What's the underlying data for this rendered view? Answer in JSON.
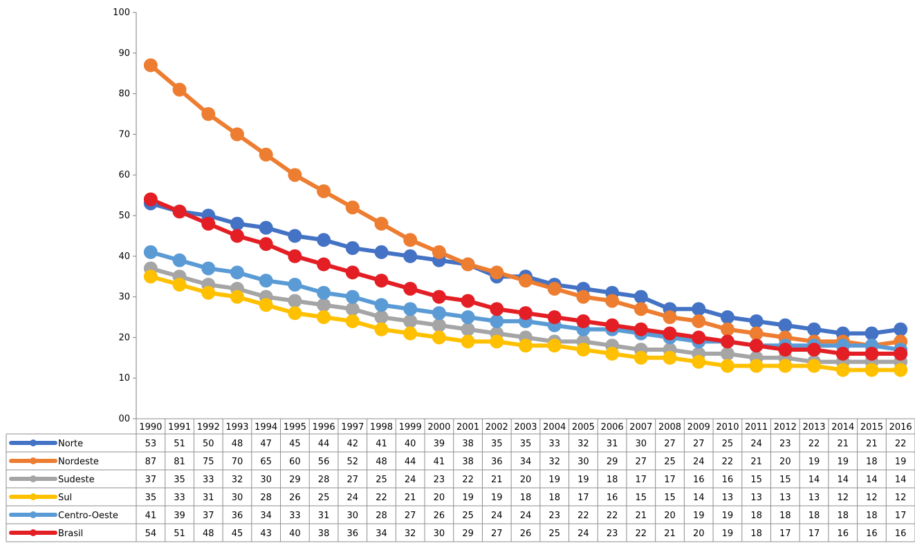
{
  "chart_data": {
    "type": "line",
    "title": "",
    "xlabel": "",
    "ylabel": "",
    "ylim": [
      0,
      100
    ],
    "yticks": [
      "00",
      "10",
      "20",
      "30",
      "40",
      "50",
      "60",
      "70",
      "80",
      "90",
      "100"
    ],
    "grid": false,
    "legend": "data-table-left",
    "categories": [
      "1990",
      "1991",
      "1992",
      "1993",
      "1994",
      "1995",
      "1996",
      "1997",
      "1998",
      "1999",
      "2000",
      "2001",
      "2002",
      "2003",
      "2004",
      "2005",
      "2006",
      "2007",
      "2008",
      "2009",
      "2010",
      "2011",
      "2012",
      "2013",
      "2014",
      "2015",
      "2016"
    ],
    "series": [
      {
        "name": "Norte",
        "color": "#4472c4",
        "values": [
          53,
          51,
          50,
          48,
          47,
          45,
          44,
          42,
          41,
          40,
          39,
          38,
          35,
          35,
          33,
          32,
          31,
          30,
          27,
          27,
          25,
          24,
          23,
          22,
          21,
          21,
          22
        ]
      },
      {
        "name": "Nordeste",
        "color": "#ed7d31",
        "values": [
          87,
          81,
          75,
          70,
          65,
          60,
          56,
          52,
          48,
          44,
          41,
          38,
          36,
          34,
          32,
          30,
          29,
          27,
          25,
          24,
          22,
          21,
          20,
          19,
          19,
          18,
          19
        ]
      },
      {
        "name": "Sudeste",
        "color": "#a5a5a5",
        "values": [
          37,
          35,
          33,
          32,
          30,
          29,
          28,
          27,
          25,
          24,
          23,
          22,
          21,
          20,
          19,
          19,
          18,
          17,
          17,
          16,
          16,
          15,
          15,
          14,
          14,
          14,
          14
        ]
      },
      {
        "name": "Sul",
        "color": "#ffc000",
        "values": [
          35,
          33,
          31,
          30,
          28,
          26,
          25,
          24,
          22,
          21,
          20,
          19,
          19,
          18,
          18,
          17,
          16,
          15,
          15,
          14,
          13,
          13,
          13,
          13,
          12,
          12,
          12
        ]
      },
      {
        "name": "Centro-Oeste",
        "color": "#5b9bd5",
        "values": [
          41,
          39,
          37,
          36,
          34,
          33,
          31,
          30,
          28,
          27,
          26,
          25,
          24,
          24,
          23,
          22,
          22,
          21,
          20,
          19,
          19,
          18,
          18,
          18,
          18,
          18,
          17
        ]
      },
      {
        "name": "Brasil",
        "color": "#e31e24",
        "values": [
          54,
          51,
          48,
          45,
          43,
          40,
          38,
          36,
          34,
          32,
          30,
          29,
          27,
          26,
          25,
          24,
          23,
          22,
          21,
          20,
          19,
          18,
          17,
          17,
          16,
          16,
          16
        ]
      }
    ]
  }
}
